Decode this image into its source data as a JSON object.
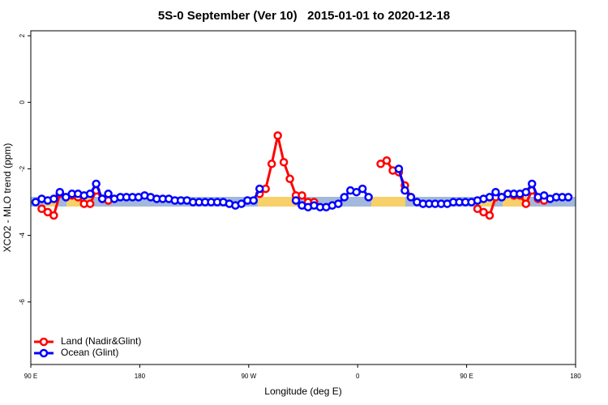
{
  "chart_data": {
    "type": "line",
    "title": "5S-0 September (Ver 10)   2015-01-01 to 2020-12-18",
    "x_label": "Longitude (deg E)",
    "y_label": "XCO2 - MLO trend (ppm)",
    "x": [
      94,
      99,
      104,
      109,
      114,
      119,
      124,
      129,
      134,
      139,
      144,
      149,
      154,
      159,
      164,
      169,
      174,
      179,
      184,
      189,
      194,
      199,
      204,
      209,
      214,
      219,
      224,
      229,
      234,
      239,
      244,
      249,
      254,
      259,
      264,
      269,
      274,
      279,
      284,
      289,
      294,
      299,
      304,
      309,
      314,
      319,
      324,
      329,
      334,
      339,
      344,
      349,
      354,
      359,
      364,
      369,
      374,
      379,
      384,
      389,
      394,
      399,
      404,
      409,
      414,
      419,
      424,
      429,
      434,
      439,
      444,
      449,
      454,
      459,
      464,
      469,
      474,
      479,
      484,
      489,
      494,
      499,
      504,
      509,
      514,
      519,
      524,
      529,
      534
    ],
    "series": [
      {
        "name": "Land (Nadir&Glint)",
        "color": "#ff0000",
        "values": [
          null,
          -3.2,
          -3.3,
          -3.4,
          -2.75,
          -2.85,
          -2.8,
          -2.85,
          -3.05,
          -3.05,
          -2.65,
          -2.9,
          -2.95,
          null,
          null,
          null,
          null,
          null,
          null,
          null,
          null,
          null,
          null,
          null,
          null,
          null,
          null,
          null,
          null,
          null,
          null,
          null,
          null,
          null,
          null,
          null,
          null,
          -2.75,
          -2.6,
          -1.85,
          -1.0,
          -1.8,
          -2.3,
          -2.8,
          -2.8,
          -3.0,
          -3.0,
          null,
          null,
          null,
          null,
          null,
          null,
          null,
          null,
          null,
          null,
          -1.85,
          -1.75,
          -2.05,
          -2.1,
          -2.5,
          -2.85,
          null,
          null,
          null,
          null,
          null,
          null,
          null,
          null,
          null,
          null,
          -3.2,
          -3.3,
          -3.4,
          -2.85,
          -2.85,
          -2.75,
          -2.8,
          -2.8,
          -3.05,
          -2.65,
          -2.9,
          -2.95,
          null,
          null,
          null,
          null
        ]
      },
      {
        "name": "Ocean (Glint)",
        "color": "#0000ff",
        "values": [
          -3.0,
          -2.9,
          -2.95,
          -2.9,
          -2.7,
          -2.85,
          -2.75,
          -2.75,
          -2.8,
          -2.75,
          -2.45,
          -2.9,
          -2.75,
          -2.9,
          -2.85,
          -2.85,
          -2.85,
          -2.85,
          -2.8,
          -2.85,
          -2.9,
          -2.9,
          -2.9,
          -2.95,
          -2.95,
          -2.95,
          -3.0,
          -3.0,
          -3.0,
          -3.0,
          -3.0,
          -3.0,
          -3.05,
          -3.1,
          -3.05,
          -2.95,
          -2.95,
          -2.6,
          null,
          null,
          null,
          null,
          null,
          -2.95,
          -3.1,
          -3.15,
          -3.1,
          -3.15,
          -3.15,
          -3.1,
          -3.05,
          -2.85,
          -2.65,
          -2.7,
          -2.6,
          -2.85,
          null,
          null,
          null,
          null,
          -2.0,
          -2.65,
          -2.85,
          -3.0,
          -3.05,
          -3.05,
          -3.05,
          -3.05,
          -3.05,
          -3.0,
          -3.0,
          -3.0,
          -3.0,
          -2.95,
          -2.9,
          -2.85,
          -2.7,
          -2.85,
          -2.75,
          -2.75,
          -2.75,
          -2.7,
          -2.45,
          -2.85,
          -2.8,
          -2.9,
          -2.85,
          -2.85,
          -2.85
        ]
      }
    ],
    "xlim": [
      90,
      540
    ],
    "xticks": [
      {
        "value": 90,
        "label": "90 E"
      },
      {
        "value": 180,
        "label": "180"
      },
      {
        "value": 270,
        "label": "90 W"
      },
      {
        "value": 360,
        "label": "0"
      },
      {
        "value": 450,
        "label": "90 E"
      },
      {
        "value": 540,
        "label": "180"
      }
    ],
    "ylim": [
      -7.88,
      2.15
    ],
    "yticks": [
      2,
      0,
      -2,
      -4,
      -6
    ],
    "legend": "bottom-left"
  }
}
